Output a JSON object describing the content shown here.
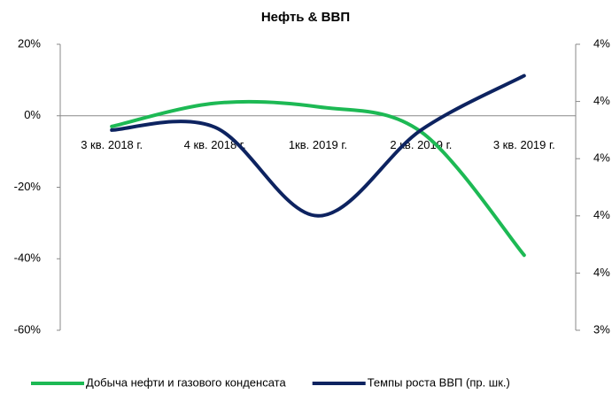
{
  "chart_data": {
    "type": "line",
    "title": "Нефть  & ВВП",
    "categories": [
      "3 кв. 2018 г.",
      "4 кв. 2018 г.",
      "1кв. 2019 г.",
      "2 кв. 2019 г.",
      "3 кв. 2019 г."
    ],
    "series": [
      {
        "name": "Добыча нефти и газового конденсата",
        "color": "#1db954",
        "values": [
          -3,
          3.5,
          2.5,
          -4.5,
          -39
        ]
      },
      {
        "name": "Темпы роста ВВП (пр. шк.)",
        "color": "#0d2360",
        "axis": "y2",
        "values": [
          4.1,
          4.11,
          3.8,
          4.1,
          4.29
        ]
      }
    ],
    "ylim": [
      -60,
      20
    ],
    "yticks": [
      {
        "value": 20,
        "label": "20%"
      },
      {
        "value": 0,
        "label": "0%"
      },
      {
        "value": -20,
        "label": "-20%"
      },
      {
        "value": -40,
        "label": "-40%"
      },
      {
        "value": -60,
        "label": "-60%"
      }
    ],
    "y2lim": [
      3.4,
      4.4
    ],
    "y2ticks": [
      {
        "value": 4.4,
        "label": "4%"
      },
      {
        "value": 4.2,
        "label": "4%"
      },
      {
        "value": 4.0,
        "label": "4%"
      },
      {
        "value": 3.8,
        "label": "4%"
      },
      {
        "value": 3.6,
        "label": "4%"
      },
      {
        "value": 3.4,
        "label": "3%"
      }
    ],
    "legend": "bottom"
  }
}
